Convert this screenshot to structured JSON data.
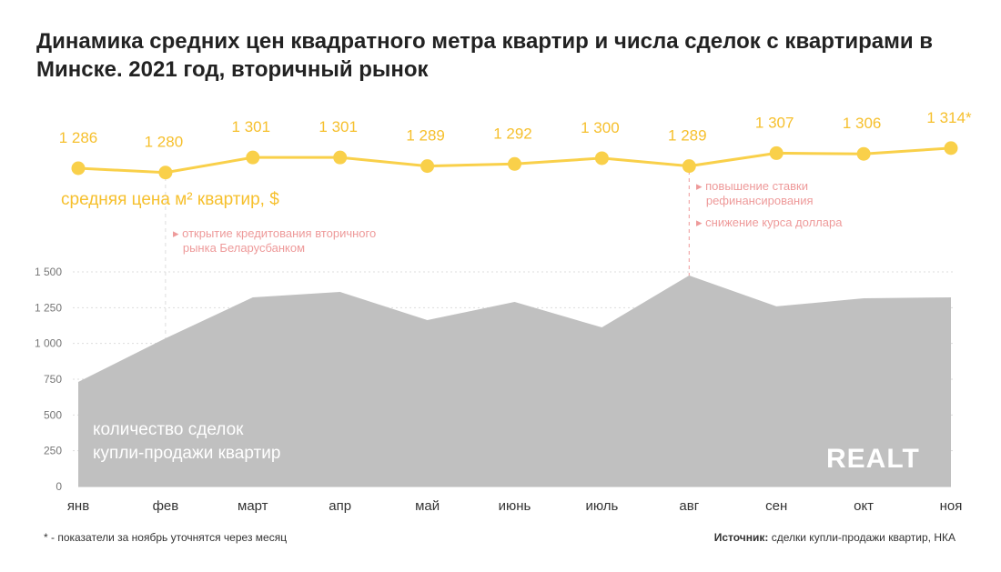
{
  "title": "Динамика средних цен квадратного метра квартир и числа сделок с квартирами в Минске. 2021 год, вторичный рынок",
  "colors": {
    "price": "#f9d04a",
    "price_label": "#f6c02e",
    "area": "#c0c0c0",
    "annotation": "#ee9a9a"
  },
  "chart_data": [
    {
      "type": "line",
      "name": "price",
      "label": "средняя цена м² квартир, $",
      "categories": [
        "янв",
        "фев",
        "март",
        "апр",
        "май",
        "июнь",
        "июль",
        "авг",
        "сен",
        "окт",
        "ноя"
      ],
      "values": [
        1286,
        1280,
        1301,
        1301,
        1289,
        1292,
        1300,
        1289,
        1307,
        1306,
        1314
      ],
      "value_labels": [
        "1 286",
        "1 280",
        "1 301",
        "1 301",
        "1 289",
        "1 292",
        "1 300",
        "1 289",
        "1 307",
        "1 306",
        "1 314*"
      ]
    },
    {
      "type": "area",
      "name": "deals",
      "label_line1": "количество сделок",
      "label_line2": "купли-продажи квартир",
      "categories": [
        "янв",
        "фев",
        "март",
        "апр",
        "май",
        "июнь",
        "июль",
        "авг",
        "сен",
        "окт",
        "ноя"
      ],
      "values": [
        731,
        1036,
        1322,
        1360,
        1163,
        1290,
        1112,
        1475,
        1259,
        1316,
        1322
      ],
      "ylim": [
        0,
        1500
      ],
      "yticks": [
        0,
        250,
        500,
        750,
        1000,
        1250,
        1500
      ],
      "ytick_labels": [
        "0",
        "250",
        "500",
        "750",
        "1 000",
        "1 250",
        "1 500"
      ],
      "grid": true
    }
  ],
  "annotations": [
    {
      "month": "фев",
      "lines": [
        "открытие кредитования вторичного",
        "рынка Беларусбанком"
      ]
    },
    {
      "month": "авг",
      "lines": [
        "повышение ставки",
        "рефинансирования"
      ]
    },
    {
      "month": "авг",
      "lines": [
        "снижение курса доллара"
      ]
    }
  ],
  "logo": "REALT",
  "footnote": "* - показатели за ноябрь уточнятся через месяц",
  "source_label": "Источник:",
  "source_text": " сделки купли-продажи квартир, НКА"
}
